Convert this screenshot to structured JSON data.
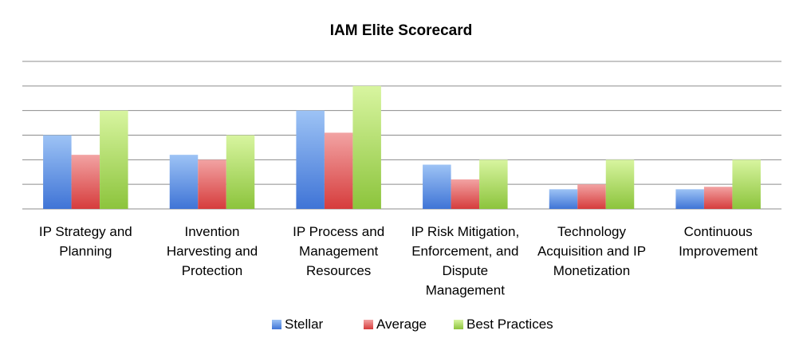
{
  "chart_data": {
    "type": "bar",
    "title": "IAM Elite Scorecard",
    "categories": [
      [
        "IP Strategy and",
        "Planning"
      ],
      [
        "Invention",
        "Harvesting and",
        "Protection"
      ],
      [
        "IP Process and",
        "Management",
        "Resources"
      ],
      [
        "IP Risk Mitigation,",
        "Enforcement, and",
        "Dispute",
        "Management"
      ],
      [
        "Technology",
        "Acquisition and IP",
        "Monetization"
      ],
      [
        "Continuous",
        "Improvement"
      ]
    ],
    "series": [
      {
        "name": "Stellar",
        "color": "#4f81bd",
        "values": [
          3.0,
          2.2,
          4.0,
          1.8,
          0.8,
          0.8
        ]
      },
      {
        "name": "Average",
        "color": "#c0504d",
        "values": [
          2.2,
          2.0,
          3.1,
          1.2,
          1.0,
          0.9
        ]
      },
      {
        "name": "Best Practices",
        "color": "#9bbb59",
        "values": [
          4.0,
          3.0,
          5.0,
          2.0,
          2.0,
          2.0
        ]
      }
    ],
    "ylim": [
      0,
      6
    ],
    "grid": true,
    "ytick_labels_shown": false,
    "legend_position": "bottom"
  }
}
